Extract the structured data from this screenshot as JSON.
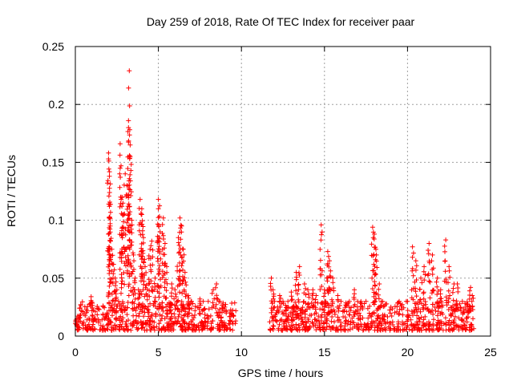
{
  "chart_data": {
    "type": "scatter",
    "title": "Day 259 of 2018, Rate Of TEC Index for receiver paar",
    "xlabel": "GPS time / hours",
    "ylabel": "ROTI / TECUs",
    "xlim": [
      0,
      25
    ],
    "ylim": [
      0,
      0.25
    ],
    "x_ticks": [
      0,
      5,
      10,
      15,
      20,
      25
    ],
    "x_tick_labels": [
      "0",
      "5",
      "10",
      "15",
      "20",
      "25"
    ],
    "y_ticks": [
      0,
      0.05,
      0.1,
      0.15,
      0.2,
      0.25
    ],
    "y_tick_labels": [
      "0",
      "0.05",
      "0.1",
      "0.15",
      "0.2",
      "0.25"
    ],
    "grid": true,
    "marker": "+",
    "color": "#ff0000",
    "data_gap_hours": [
      9.7,
      11.7
    ],
    "series": [
      {
        "name": "ROTI",
        "points": [
          [
            0.0,
            0.011
          ],
          [
            0.1,
            0.01
          ],
          [
            0.2,
            0.012
          ],
          [
            0.3,
            0.013
          ],
          [
            0.5,
            0.012
          ],
          [
            0.7,
            0.014
          ],
          [
            0.9,
            0.028
          ],
          [
            0.95,
            0.034
          ],
          [
            1.0,
            0.022
          ],
          [
            1.2,
            0.015
          ],
          [
            1.4,
            0.013
          ],
          [
            1.6,
            0.014
          ],
          [
            1.8,
            0.016
          ],
          [
            1.9,
            0.02
          ],
          [
            2.0,
            0.158
          ],
          [
            2.0,
            0.153
          ],
          [
            2.05,
            0.138
          ],
          [
            2.05,
            0.112
          ],
          [
            2.1,
            0.095
          ],
          [
            2.2,
            0.075
          ],
          [
            2.3,
            0.062
          ],
          [
            2.4,
            0.05
          ],
          [
            2.5,
            0.04
          ],
          [
            2.6,
            0.03
          ],
          [
            2.7,
            0.166
          ],
          [
            2.75,
            0.147
          ],
          [
            2.8,
            0.12
          ],
          [
            2.9,
            0.105
          ],
          [
            3.0,
            0.14
          ],
          [
            3.1,
            0.13
          ],
          [
            3.2,
            0.186
          ],
          [
            3.2,
            0.18
          ],
          [
            3.25,
            0.229
          ],
          [
            3.3,
            0.165
          ],
          [
            3.3,
            0.155
          ],
          [
            3.4,
            0.1
          ],
          [
            3.5,
            0.07
          ],
          [
            3.6,
            0.05
          ],
          [
            3.8,
            0.04
          ],
          [
            3.9,
            0.118
          ],
          [
            4.0,
            0.11
          ],
          [
            4.0,
            0.105
          ],
          [
            4.1,
            0.085
          ],
          [
            4.2,
            0.06
          ],
          [
            4.4,
            0.045
          ],
          [
            4.5,
            0.075
          ],
          [
            4.6,
            0.082
          ],
          [
            4.8,
            0.05
          ],
          [
            5.0,
            0.118
          ],
          [
            5.0,
            0.11
          ],
          [
            5.1,
            0.09
          ],
          [
            5.3,
            0.102
          ],
          [
            5.4,
            0.08
          ],
          [
            5.5,
            0.06
          ],
          [
            5.8,
            0.045
          ],
          [
            6.0,
            0.04
          ],
          [
            6.2,
            0.085
          ],
          [
            6.3,
            0.102
          ],
          [
            6.4,
            0.095
          ],
          [
            6.5,
            0.075
          ],
          [
            6.6,
            0.055
          ],
          [
            6.8,
            0.035
          ],
          [
            7.0,
            0.03
          ],
          [
            7.5,
            0.032
          ],
          [
            8.0,
            0.03
          ],
          [
            8.3,
            0.04
          ],
          [
            8.5,
            0.045
          ],
          [
            8.7,
            0.03
          ],
          [
            9.0,
            0.025
          ],
          [
            9.3,
            0.02
          ],
          [
            9.5,
            0.018
          ],
          [
            11.8,
            0.05
          ],
          [
            11.9,
            0.04
          ],
          [
            12.0,
            0.03
          ],
          [
            12.3,
            0.035
          ],
          [
            12.5,
            0.03
          ],
          [
            12.8,
            0.03
          ],
          [
            13.0,
            0.038
          ],
          [
            13.3,
            0.055
          ],
          [
            13.5,
            0.06
          ],
          [
            13.8,
            0.045
          ],
          [
            14.0,
            0.04
          ],
          [
            14.3,
            0.04
          ],
          [
            14.5,
            0.035
          ],
          [
            14.8,
            0.096
          ],
          [
            15.0,
            0.04
          ],
          [
            15.2,
            0.073
          ],
          [
            15.3,
            0.065
          ],
          [
            15.5,
            0.05
          ],
          [
            15.8,
            0.035
          ],
          [
            16.0,
            0.03
          ],
          [
            16.5,
            0.03
          ],
          [
            16.8,
            0.04
          ],
          [
            17.0,
            0.03
          ],
          [
            17.3,
            0.025
          ],
          [
            17.5,
            0.03
          ],
          [
            17.9,
            0.094
          ],
          [
            18.0,
            0.088
          ],
          [
            18.1,
            0.075
          ],
          [
            18.3,
            0.045
          ],
          [
            18.5,
            0.03
          ],
          [
            19.0,
            0.025
          ],
          [
            19.5,
            0.03
          ],
          [
            20.0,
            0.03
          ],
          [
            20.3,
            0.077
          ],
          [
            20.5,
            0.065
          ],
          [
            20.8,
            0.05
          ],
          [
            21.0,
            0.06
          ],
          [
            21.3,
            0.08
          ],
          [
            21.5,
            0.07
          ],
          [
            21.8,
            0.05
          ],
          [
            22.0,
            0.04
          ],
          [
            22.3,
            0.083
          ],
          [
            22.5,
            0.06
          ],
          [
            22.8,
            0.045
          ],
          [
            23.0,
            0.045
          ],
          [
            23.3,
            0.03
          ],
          [
            23.5,
            0.025
          ],
          [
            23.8,
            0.042
          ],
          [
            23.9,
            0.035
          ]
        ]
      }
    ],
    "background_band": {
      "description": "dense cluster of low ROTI values across both data segments",
      "typical_range": [
        0.005,
        0.03
      ],
      "segments": [
        [
          0.0,
          9.7
        ],
        [
          11.7,
          24.0
        ]
      ]
    }
  }
}
